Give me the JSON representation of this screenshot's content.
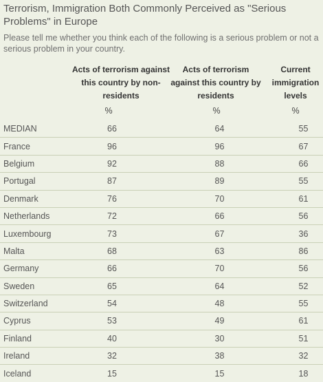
{
  "title": "Terrorism, Immigration Both Commonly Perceived as \"Serious Problems\" in Europe",
  "subtitle": "Please tell me whether you think each of the following is a serious problem or not a serious problem in your country.",
  "columns": [
    {
      "label": "Acts of terrorism against this country by non-residents",
      "unit": "%"
    },
    {
      "label": "Acts of terrorism against this country by residents",
      "unit": "%"
    },
    {
      "label": "Current immigration levels",
      "unit": "%"
    }
  ],
  "chart_data": {
    "type": "table",
    "title": "Terrorism, Immigration Both Commonly Perceived as \"Serious Problems\" in Europe",
    "columns": [
      "Acts of terrorism against this country by non-residents",
      "Acts of terrorism against this country by residents",
      "Current immigration levels"
    ],
    "unit": "%",
    "rows": [
      {
        "name": "MEDIAN",
        "values": [
          66,
          64,
          55
        ]
      },
      {
        "name": "France",
        "values": [
          96,
          96,
          67
        ]
      },
      {
        "name": "Belgium",
        "values": [
          92,
          88,
          66
        ]
      },
      {
        "name": "Portugal",
        "values": [
          87,
          89,
          55
        ]
      },
      {
        "name": "Denmark",
        "values": [
          76,
          70,
          61
        ]
      },
      {
        "name": "Netherlands",
        "values": [
          72,
          66,
          56
        ]
      },
      {
        "name": "Luxembourg",
        "values": [
          73,
          67,
          36
        ]
      },
      {
        "name": "Malta",
        "values": [
          68,
          63,
          86
        ]
      },
      {
        "name": "Germany",
        "values": [
          66,
          70,
          56
        ]
      },
      {
        "name": "Sweden",
        "values": [
          65,
          64,
          52
        ]
      },
      {
        "name": "Switzerland",
        "values": [
          54,
          48,
          55
        ]
      },
      {
        "name": "Cyprus",
        "values": [
          53,
          49,
          61
        ]
      },
      {
        "name": "Finland",
        "values": [
          40,
          30,
          51
        ]
      },
      {
        "name": "Ireland",
        "values": [
          32,
          38,
          32
        ]
      },
      {
        "name": "Iceland",
        "values": [
          15,
          15,
          18
        ]
      }
    ]
  }
}
